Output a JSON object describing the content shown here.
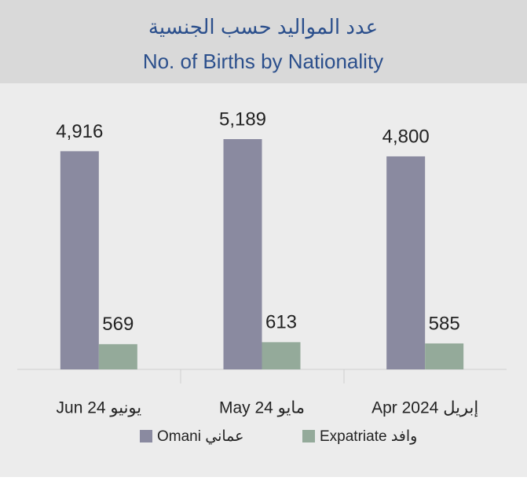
{
  "chart_data": {
    "type": "bar",
    "title": "عدد المواليد حسب الجنسية",
    "subtitle": "No. of Births by Nationality",
    "categories": [
      "Jun 24 يونيو",
      "May 24 مايو",
      "Apr 2024 إبريل"
    ],
    "series": [
      {
        "name": "Omani عماني",
        "color": "#8a8aa0",
        "values": [
          4916,
          5189,
          4800
        ],
        "value_labels": [
          "4,916",
          "5,189",
          "4,800"
        ]
      },
      {
        "name": "Expatriate وافد",
        "color": "#94aa9a",
        "values": [
          569,
          613,
          585
        ]
      }
    ]
  }
}
